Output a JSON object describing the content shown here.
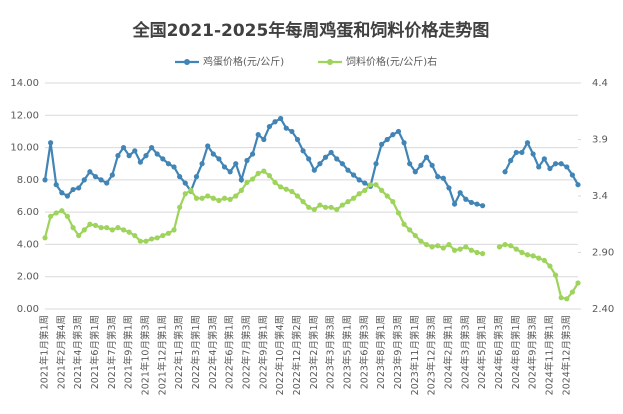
{
  "chart_data": {
    "type": "line",
    "title": "全国2021-2025年每周鸡蛋和饲料价格走势图",
    "categories": [
      "2021年1月第1周",
      null,
      null,
      "2021年2月第4周",
      null,
      null,
      "2021年4月第3周",
      null,
      null,
      "2021年6月第1周",
      null,
      null,
      "2021年7月第3周",
      null,
      null,
      "2021年9月第1周",
      null,
      null,
      "2021年10月第3周",
      null,
      null,
      "2021年12月第1周",
      null,
      null,
      "2022年1月第3周",
      null,
      null,
      "2022年3月第1周",
      null,
      null,
      "2022年4月第3周",
      null,
      null,
      "2022年6月第1周",
      null,
      null,
      "2022年7月第3周",
      null,
      null,
      "2022年9月第1周",
      null,
      null,
      "2022年10月第4周",
      null,
      null,
      "2022年12月第2周",
      null,
      null,
      "2023年2月第1周",
      null,
      null,
      "2023年3月第3周",
      null,
      null,
      "2023年5月第1周",
      null,
      null,
      "2023年6月第3周",
      null,
      null,
      "2023年8月第1周",
      null,
      null,
      "2023年9月第3周",
      null,
      null,
      "2023年11月第1周",
      null,
      null,
      "2023年12月第3周",
      null,
      null,
      "2024年2月第1周",
      null,
      null,
      "2024年3月第3周",
      null,
      null,
      "2024年5月第1周",
      null,
      null,
      "2024年6月第3周",
      null,
      null,
      "2024年8月第1周",
      null,
      null,
      "2024年9月第3周",
      null,
      null,
      "2024年11月第1周",
      null,
      null,
      "2024年12月第3周",
      null,
      null
    ],
    "series": [
      {
        "name": "鸡蛋价格(元/公斤)",
        "color": "#4184b6",
        "values": [
          8.0,
          10.3,
          7.7,
          7.2,
          7.0,
          7.4,
          7.5,
          8.0,
          8.5,
          8.2,
          8.0,
          7.8,
          8.3,
          9.5,
          10.0,
          9.5,
          9.8,
          9.1,
          9.5,
          10.0,
          9.6,
          9.3,
          9.0,
          8.8,
          8.2,
          7.8,
          7.3,
          8.2,
          9.0,
          10.1,
          9.6,
          9.3,
          8.8,
          8.5,
          9.0,
          8.0,
          9.2,
          9.6,
          10.8,
          10.5,
          11.3,
          11.6,
          11.8,
          11.2,
          11.0,
          10.5,
          9.8,
          9.3,
          8.6,
          9.0,
          9.4,
          9.7,
          9.3,
          9.0,
          8.6,
          8.3,
          8.0,
          7.8,
          7.6,
          9.0,
          10.2,
          10.5,
          10.8,
          11.0,
          10.3,
          9.0,
          8.5,
          8.9,
          9.4,
          8.9,
          8.2,
          8.1,
          7.5,
          6.5,
          7.2,
          6.8,
          6.6,
          6.5,
          6.4,
          null,
          null,
          null,
          8.5,
          9.2,
          9.7,
          9.7,
          10.3,
          9.6,
          8.8,
          9.3,
          8.7,
          9.0,
          9.0,
          8.8,
          8.3,
          7.7
        ]
      },
      {
        "name": "饲料价格(元/公斤)右",
        "color": "#9ed35c",
        "axis": "y2",
        "values": [
          3.03,
          3.22,
          3.25,
          3.27,
          3.22,
          3.12,
          3.05,
          3.1,
          3.15,
          3.14,
          3.12,
          3.12,
          3.1,
          3.12,
          3.1,
          3.08,
          3.05,
          3.0,
          3.0,
          3.02,
          3.03,
          3.05,
          3.07,
          3.1,
          3.3,
          3.42,
          3.45,
          3.38,
          3.38,
          3.4,
          3.38,
          3.36,
          3.38,
          3.37,
          3.4,
          3.45,
          3.52,
          3.55,
          3.6,
          3.62,
          3.58,
          3.52,
          3.48,
          3.46,
          3.44,
          3.4,
          3.35,
          3.3,
          3.28,
          3.32,
          3.3,
          3.3,
          3.28,
          3.32,
          3.35,
          3.38,
          3.42,
          3.45,
          3.5,
          3.5,
          3.45,
          3.4,
          3.35,
          3.25,
          3.15,
          3.1,
          3.05,
          3.0,
          2.97,
          2.95,
          2.96,
          2.94,
          2.97,
          2.92,
          2.93,
          2.95,
          2.92,
          2.9,
          2.89,
          null,
          null,
          2.95,
          2.97,
          2.96,
          2.93,
          2.9,
          2.88,
          2.87,
          2.85,
          2.83,
          2.78,
          2.7,
          2.5,
          2.49,
          2.55,
          2.63
        ]
      }
    ],
    "ylim": [
      0,
      14
    ],
    "yticks": [
      {
        "value": 0,
        "label": "0.00"
      },
      {
        "value": 2,
        "label": "2.00"
      },
      {
        "value": 4,
        "label": "4.00"
      },
      {
        "value": 6,
        "label": "6.00"
      },
      {
        "value": 8,
        "label": "8.00"
      },
      {
        "value": 10,
        "label": "10.00"
      },
      {
        "value": 12,
        "label": "12.00"
      },
      {
        "value": 14,
        "label": "14.00"
      }
    ],
    "y2lim": [
      2.4,
      4.4
    ],
    "y2ticks": [
      {
        "value": 2.4,
        "label": "2.40"
      },
      {
        "value": 2.9,
        "label": "2.90"
      },
      3.4,
      3.9,
      4.4
    ],
    "grid": true,
    "legend": "top"
  }
}
